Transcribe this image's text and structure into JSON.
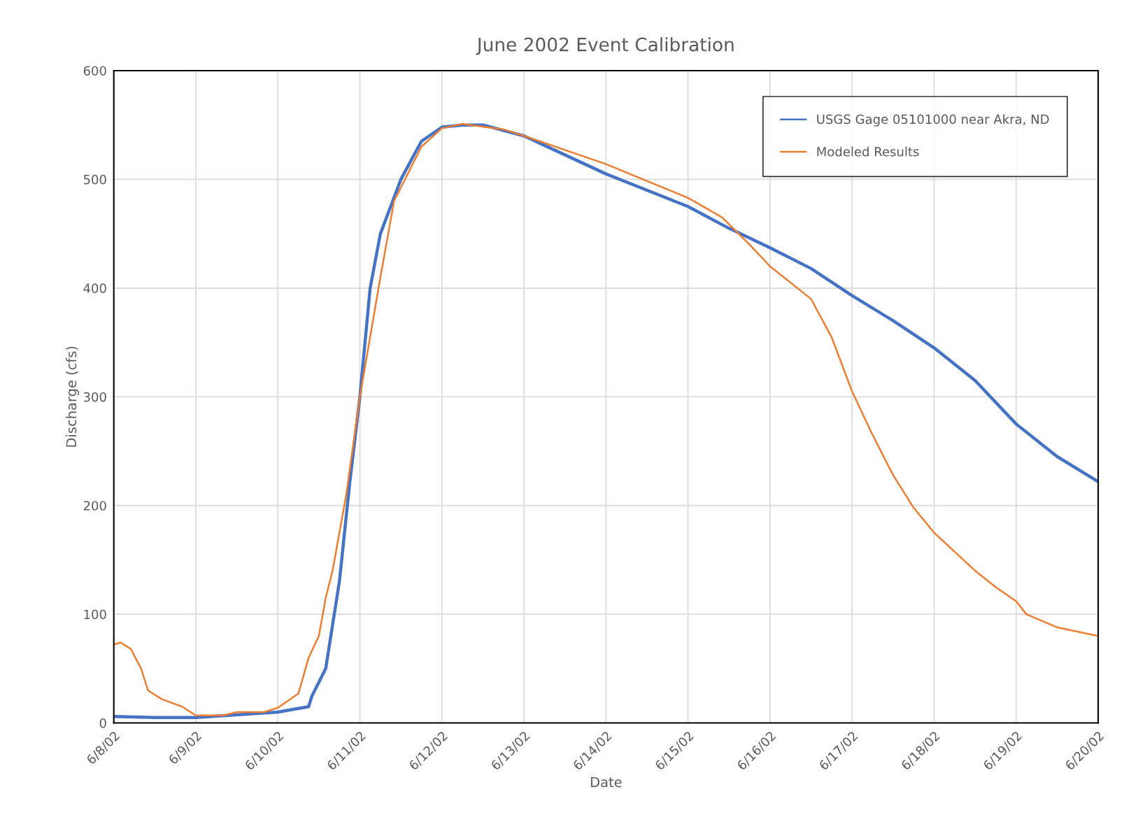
{
  "chart_data": {
    "type": "line",
    "title": "June 2002 Event Calibration",
    "xlabel": "Date",
    "ylabel": "Discharge (cfs)",
    "xlim": [
      "2002-06-08",
      "2002-06-20"
    ],
    "xticks": [
      {
        "value": "2002-06-08",
        "label": "6/8/02"
      },
      {
        "value": "2002-06-09",
        "label": "6/9/02"
      },
      {
        "value": "2002-06-10",
        "label": "6/10/02"
      },
      {
        "value": "2002-06-11",
        "label": "6/11/02"
      },
      {
        "value": "2002-06-12",
        "label": "6/12/02"
      },
      {
        "value": "2002-06-13",
        "label": "6/13/02"
      },
      {
        "value": "2002-06-14",
        "label": "6/14/02"
      },
      {
        "value": "2002-06-15",
        "label": "6/15/02"
      },
      {
        "value": "2002-06-16",
        "label": "6/16/02"
      },
      {
        "value": "2002-06-17",
        "label": "6/17/02"
      },
      {
        "value": "2002-06-18",
        "label": "6/18/02"
      },
      {
        "value": "2002-06-19",
        "label": "6/19/02"
      },
      {
        "value": "2002-06-20",
        "label": "6/20/02"
      }
    ],
    "ylim": [
      0,
      600
    ],
    "yticks": [
      0,
      100,
      200,
      300,
      400,
      500,
      600
    ],
    "grid": true,
    "legend": "top right",
    "series": [
      {
        "name": "USGS Gage 05101000 near Akra, ND",
        "color": "#4472c4",
        "x": [
          "2002-06-08T00:00",
          "2002-06-08T12:00",
          "2002-06-09T00:00",
          "2002-06-10T00:00",
          "2002-06-10T09:00",
          "2002-06-10T10:00",
          "2002-06-10T14:00",
          "2002-06-10T18:00",
          "2002-06-10T21:00",
          "2002-06-11T00:00",
          "2002-06-11T03:00",
          "2002-06-11T06:00",
          "2002-06-11T12:00",
          "2002-06-11T18:00",
          "2002-06-12T00:00",
          "2002-06-12T06:00",
          "2002-06-12T12:00",
          "2002-06-13T00:00",
          "2002-06-14T00:00",
          "2002-06-15T00:00",
          "2002-06-15T12:00",
          "2002-06-16T00:00",
          "2002-06-16T12:00",
          "2002-06-17T00:00",
          "2002-06-17T12:00",
          "2002-06-18T00:00",
          "2002-06-18T12:00",
          "2002-06-19T00:00",
          "2002-06-19T12:00",
          "2002-06-20T00:00"
        ],
        "values": [
          6,
          5,
          5,
          10,
          15,
          25,
          50,
          130,
          220,
          300,
          400,
          450,
          500,
          535,
          548,
          550,
          550,
          540,
          505,
          475,
          455,
          437,
          418,
          393,
          370,
          345,
          315,
          275,
          245,
          222
        ]
      },
      {
        "name": "Modeled Results",
        "color": "#ed7d31",
        "x": [
          "2002-06-08T00:00",
          "2002-06-08T02:00",
          "2002-06-08T05:00",
          "2002-06-08T08:00",
          "2002-06-08T10:00",
          "2002-06-08T14:00",
          "2002-06-08T20:00",
          "2002-06-09T00:00",
          "2002-06-09T08:00",
          "2002-06-09T12:00",
          "2002-06-09T20:00",
          "2002-06-10T00:00",
          "2002-06-10T06:00",
          "2002-06-10T09:00",
          "2002-06-10T12:00",
          "2002-06-10T14:00",
          "2002-06-10T16:00",
          "2002-06-10T20:00",
          "2002-06-11T00:00",
          "2002-06-11T06:00",
          "2002-06-11T10:00",
          "2002-06-11T18:00",
          "2002-06-12T00:00",
          "2002-06-12T06:00",
          "2002-06-12T18:00",
          "2002-06-13T00:00",
          "2002-06-14T00:00",
          "2002-06-15T00:00",
          "2002-06-15T10:00",
          "2002-06-15T18:00",
          "2002-06-16T00:00",
          "2002-06-16T12:00",
          "2002-06-16T18:00",
          "2002-06-17T00:00",
          "2002-06-17T06:00",
          "2002-06-17T12:00",
          "2002-06-17T18:00",
          "2002-06-18T00:00",
          "2002-06-18T12:00",
          "2002-06-18T18:00",
          "2002-06-19T00:00",
          "2002-06-19T03:00",
          "2002-06-19T12:00",
          "2002-06-20T00:00"
        ],
        "values": [
          72,
          74,
          68,
          50,
          30,
          22,
          15,
          7,
          7,
          10,
          10,
          14,
          27,
          60,
          80,
          115,
          140,
          210,
          300,
          410,
          480,
          530,
          547,
          551,
          546,
          540,
          514,
          483,
          465,
          440,
          420,
          390,
          355,
          305,
          265,
          228,
          198,
          175,
          140,
          125,
          112,
          100,
          88,
          80
        ]
      }
    ]
  }
}
